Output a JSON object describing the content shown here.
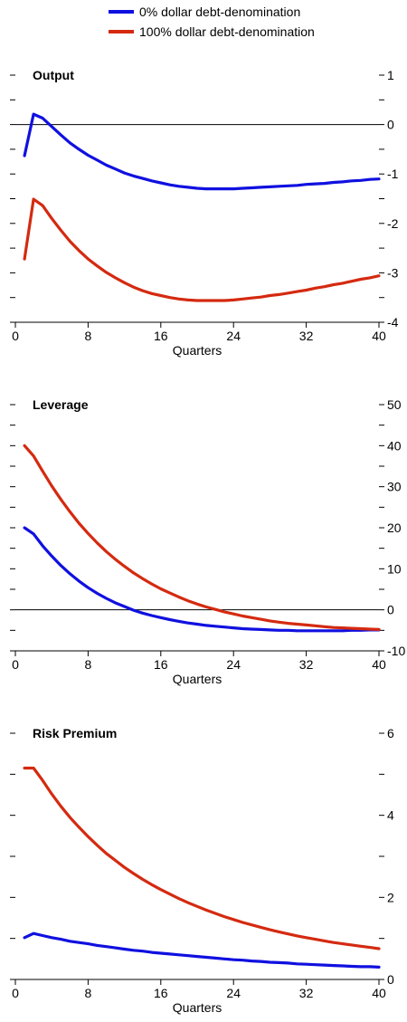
{
  "legend": [
    {
      "label": "0% dollar debt-denomination",
      "color": "#1010e0"
    },
    {
      "label": "100% dollar debt-denomination",
      "color": "#d42a10"
    }
  ],
  "chart_data": [
    {
      "type": "line",
      "title": "Output",
      "xlabel": "Quarters",
      "xlim": [
        0,
        40
      ],
      "xticks": [
        0,
        8,
        16,
        24,
        32,
        40
      ],
      "ylim": [
        -4,
        1
      ],
      "yticks": [
        -4,
        -3,
        -2,
        -1,
        0,
        1
      ],
      "ytick_labels": [
        "-4",
        "-3",
        "-2",
        "-1",
        "0",
        "1"
      ],
      "zero_line": true,
      "grid": false,
      "series": [
        {
          "name": "0% dollar debt-denomination",
          "color": "#1010e0",
          "x": [
            1,
            2,
            3,
            4,
            5,
            6,
            7,
            8,
            9,
            10,
            11,
            12,
            13,
            14,
            15,
            16,
            17,
            18,
            19,
            20,
            21,
            22,
            23,
            24,
            25,
            26,
            27,
            28,
            29,
            30,
            31,
            32,
            33,
            34,
            35,
            36,
            37,
            38,
            39,
            40
          ],
          "y": [
            -0.63,
            0.21,
            0.13,
            -0.04,
            -0.21,
            -0.37,
            -0.5,
            -0.62,
            -0.72,
            -0.82,
            -0.9,
            -0.98,
            -1.04,
            -1.09,
            -1.14,
            -1.18,
            -1.22,
            -1.25,
            -1.27,
            -1.29,
            -1.3,
            -1.3,
            -1.3,
            -1.3,
            -1.29,
            -1.28,
            -1.27,
            -1.26,
            -1.25,
            -1.24,
            -1.23,
            -1.21,
            -1.2,
            -1.19,
            -1.17,
            -1.16,
            -1.14,
            -1.13,
            -1.11,
            -1.1
          ]
        },
        {
          "name": "100% dollar debt-denomination",
          "color": "#d42a10",
          "x": [
            1,
            2,
            3,
            4,
            5,
            6,
            7,
            8,
            9,
            10,
            11,
            12,
            13,
            14,
            15,
            16,
            17,
            18,
            19,
            20,
            21,
            22,
            23,
            24,
            25,
            26,
            27,
            28,
            29,
            30,
            31,
            32,
            33,
            34,
            35,
            36,
            37,
            38,
            39,
            40
          ],
          "y": [
            -2.72,
            -1.51,
            -1.64,
            -1.9,
            -2.14,
            -2.36,
            -2.55,
            -2.72,
            -2.86,
            -2.99,
            -3.1,
            -3.2,
            -3.29,
            -3.36,
            -3.42,
            -3.46,
            -3.5,
            -3.53,
            -3.55,
            -3.56,
            -3.56,
            -3.56,
            -3.56,
            -3.55,
            -3.53,
            -3.51,
            -3.49,
            -3.46,
            -3.44,
            -3.41,
            -3.38,
            -3.35,
            -3.31,
            -3.28,
            -3.24,
            -3.21,
            -3.17,
            -3.13,
            -3.1,
            -3.06
          ]
        }
      ]
    },
    {
      "type": "line",
      "title": "Leverage",
      "xlabel": "Quarters",
      "xlim": [
        0,
        40
      ],
      "xticks": [
        0,
        8,
        16,
        24,
        32,
        40
      ],
      "ylim": [
        -10,
        50
      ],
      "yticks": [
        -10,
        0,
        10,
        20,
        30,
        40,
        50
      ],
      "ytick_labels": [
        "-10",
        "0",
        "10",
        "20",
        "30",
        "40",
        "50"
      ],
      "zero_line": true,
      "grid": false,
      "series": [
        {
          "name": "0% dollar debt-denomination",
          "color": "#1010e0",
          "x": [
            1,
            2,
            3,
            4,
            5,
            6,
            7,
            8,
            9,
            10,
            11,
            12,
            13,
            14,
            15,
            16,
            17,
            18,
            19,
            20,
            21,
            22,
            23,
            24,
            25,
            26,
            27,
            28,
            29,
            30,
            31,
            32,
            33,
            34,
            35,
            36,
            37,
            38,
            39,
            40
          ],
          "y": [
            20,
            18.5,
            15.6,
            13.1,
            10.8,
            8.8,
            7.0,
            5.4,
            4.0,
            2.8,
            1.7,
            0.8,
            -0.1,
            -0.8,
            -1.4,
            -1.9,
            -2.4,
            -2.8,
            -3.2,
            -3.5,
            -3.8,
            -4.0,
            -4.2,
            -4.4,
            -4.6,
            -4.7,
            -4.8,
            -4.9,
            -5.0,
            -5.0,
            -5.1,
            -5.1,
            -5.1,
            -5.1,
            -5.1,
            -5.1,
            -5.0,
            -5.0,
            -4.9,
            -4.9
          ]
        },
        {
          "name": "100% dollar debt-denomination",
          "color": "#d42a10",
          "x": [
            1,
            2,
            3,
            4,
            5,
            6,
            7,
            8,
            9,
            10,
            11,
            12,
            13,
            14,
            15,
            16,
            17,
            18,
            19,
            20,
            21,
            22,
            23,
            24,
            25,
            26,
            27,
            28,
            29,
            30,
            31,
            32,
            33,
            34,
            35,
            36,
            37,
            38,
            39,
            40
          ],
          "y": [
            40,
            37.5,
            33.8,
            30.2,
            26.9,
            23.9,
            21.1,
            18.6,
            16.3,
            14.2,
            12.3,
            10.6,
            9.0,
            7.6,
            6.3,
            5.1,
            4.1,
            3.1,
            2.2,
            1.4,
            0.7,
            0.1,
            -0.5,
            -1.0,
            -1.5,
            -1.9,
            -2.3,
            -2.7,
            -3.0,
            -3.3,
            -3.5,
            -3.7,
            -3.9,
            -4.1,
            -4.3,
            -4.4,
            -4.5,
            -4.6,
            -4.7,
            -4.8
          ]
        }
      ]
    },
    {
      "type": "line",
      "title": "Risk Premium",
      "xlabel": "Quarters",
      "xlim": [
        0,
        40
      ],
      "xticks": [
        0,
        8,
        16,
        24,
        32,
        40
      ],
      "ylim": [
        0,
        6
      ],
      "yticks": [
        0,
        2,
        4,
        6
      ],
      "ytick_labels": [
        "0",
        "2",
        "4",
        "6"
      ],
      "minor_yticks": [
        1,
        3,
        5
      ],
      "zero_line": false,
      "grid": false,
      "series": [
        {
          "name": "0% dollar debt-denomination",
          "color": "#1010e0",
          "x": [
            1,
            2,
            3,
            4,
            5,
            6,
            7,
            8,
            9,
            10,
            11,
            12,
            13,
            14,
            15,
            16,
            17,
            18,
            19,
            20,
            21,
            22,
            23,
            24,
            25,
            26,
            27,
            28,
            29,
            30,
            31,
            32,
            33,
            34,
            35,
            36,
            37,
            38,
            39,
            40
          ],
          "y": [
            1.02,
            1.12,
            1.07,
            1.02,
            0.98,
            0.93,
            0.9,
            0.87,
            0.83,
            0.8,
            0.77,
            0.74,
            0.71,
            0.69,
            0.66,
            0.64,
            0.62,
            0.6,
            0.58,
            0.56,
            0.54,
            0.52,
            0.5,
            0.48,
            0.47,
            0.45,
            0.44,
            0.42,
            0.41,
            0.4,
            0.38,
            0.37,
            0.36,
            0.35,
            0.34,
            0.33,
            0.32,
            0.31,
            0.31,
            0.3
          ]
        },
        {
          "name": "100% dollar debt-denomination",
          "color": "#d42a10",
          "x": [
            1,
            2,
            3,
            4,
            5,
            6,
            7,
            8,
            9,
            10,
            11,
            12,
            13,
            14,
            15,
            16,
            17,
            18,
            19,
            20,
            21,
            22,
            23,
            24,
            25,
            26,
            27,
            28,
            29,
            30,
            31,
            32,
            33,
            34,
            35,
            36,
            37,
            38,
            39,
            40
          ],
          "y": [
            5.15,
            5.15,
            4.85,
            4.52,
            4.22,
            3.95,
            3.71,
            3.48,
            3.27,
            3.07,
            2.9,
            2.73,
            2.58,
            2.44,
            2.31,
            2.19,
            2.08,
            1.97,
            1.87,
            1.78,
            1.69,
            1.61,
            1.53,
            1.46,
            1.39,
            1.33,
            1.27,
            1.21,
            1.16,
            1.11,
            1.06,
            1.02,
            0.98,
            0.94,
            0.9,
            0.87,
            0.84,
            0.81,
            0.78,
            0.75
          ]
        }
      ]
    }
  ]
}
